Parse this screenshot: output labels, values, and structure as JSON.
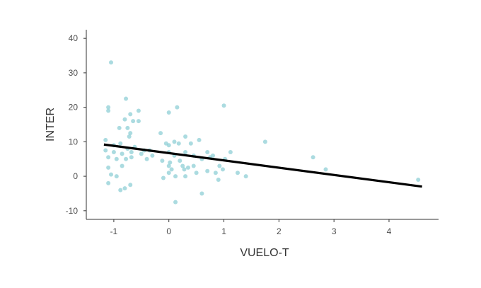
{
  "chart_data": {
    "type": "scatter",
    "title": "",
    "xlabel": "VUELO-T",
    "ylabel": "INTER",
    "xlim": [
      -1.5,
      4.9
    ],
    "ylim": [
      -12.5,
      42.5
    ],
    "xticks": [
      -1,
      0,
      1,
      2,
      3,
      4
    ],
    "yticks": [
      -10,
      0,
      10,
      20,
      30,
      40
    ],
    "grid": false,
    "legend": "none",
    "point_color": "#8fcfd6",
    "line_color": "#000000",
    "points": [
      {
        "x": -1.05,
        "y": 33
      },
      {
        "x": -1.1,
        "y": 20
      },
      {
        "x": -1.1,
        "y": 19
      },
      {
        "x": -1.15,
        "y": 10.5
      },
      {
        "x": -1.15,
        "y": 7.5
      },
      {
        "x": -1.1,
        "y": 5.5
      },
      {
        "x": -1.1,
        "y": 2.5
      },
      {
        "x": -1.05,
        "y": 0.5
      },
      {
        "x": -1.0,
        "y": 9
      },
      {
        "x": -1.0,
        "y": 7
      },
      {
        "x": -0.95,
        "y": 5
      },
      {
        "x": -1.1,
        "y": -2
      },
      {
        "x": -0.95,
        "y": 0
      },
      {
        "x": -0.9,
        "y": 14
      },
      {
        "x": -0.88,
        "y": 9.5
      },
      {
        "x": -0.85,
        "y": 6.5
      },
      {
        "x": -0.85,
        "y": 3
      },
      {
        "x": -0.88,
        "y": -4
      },
      {
        "x": -0.8,
        "y": -3.5
      },
      {
        "x": -0.78,
        "y": 22.5
      },
      {
        "x": -0.8,
        "y": 16.5
      },
      {
        "x": -0.75,
        "y": 14
      },
      {
        "x": -0.72,
        "y": 11.5
      },
      {
        "x": -0.75,
        "y": 8
      },
      {
        "x": -0.78,
        "y": 5
      },
      {
        "x": -0.7,
        "y": 18
      },
      {
        "x": -0.7,
        "y": 12.5
      },
      {
        "x": -0.68,
        "y": 7
      },
      {
        "x": -0.68,
        "y": 5.5
      },
      {
        "x": -0.7,
        "y": -2.5
      },
      {
        "x": -0.65,
        "y": 16
      },
      {
        "x": -0.62,
        "y": 8.5
      },
      {
        "x": -0.55,
        "y": 19
      },
      {
        "x": -0.55,
        "y": 16
      },
      {
        "x": -0.5,
        "y": 6.5
      },
      {
        "x": -0.45,
        "y": 7.5
      },
      {
        "x": -0.4,
        "y": 5
      },
      {
        "x": -0.35,
        "y": 7.5
      },
      {
        "x": -0.3,
        "y": 6
      },
      {
        "x": -0.15,
        "y": 12.5
      },
      {
        "x": -0.12,
        "y": 4.5
      },
      {
        "x": -0.1,
        "y": -0.5
      },
      {
        "x": -0.05,
        "y": 9.5
      },
      {
        "x": 0.0,
        "y": 18.5
      },
      {
        "x": 0.0,
        "y": 9
      },
      {
        "x": 0.0,
        "y": 7
      },
      {
        "x": 0.02,
        "y": 4
      },
      {
        "x": 0.0,
        "y": 3
      },
      {
        "x": 0.05,
        "y": 2
      },
      {
        "x": 0.0,
        "y": 1
      },
      {
        "x": 0.1,
        "y": 10
      },
      {
        "x": 0.1,
        "y": 6
      },
      {
        "x": 0.12,
        "y": 0
      },
      {
        "x": 0.12,
        "y": -7.5
      },
      {
        "x": 0.15,
        "y": 20
      },
      {
        "x": 0.18,
        "y": 9.5
      },
      {
        "x": 0.2,
        "y": 4.5
      },
      {
        "x": 0.25,
        "y": 3
      },
      {
        "x": 0.28,
        "y": 2
      },
      {
        "x": 0.3,
        "y": 11.5
      },
      {
        "x": 0.3,
        "y": 7
      },
      {
        "x": 0.3,
        "y": 0
      },
      {
        "x": 0.35,
        "y": 2.5
      },
      {
        "x": 0.4,
        "y": 9.5
      },
      {
        "x": 0.45,
        "y": 6
      },
      {
        "x": 0.45,
        "y": 3
      },
      {
        "x": 0.5,
        "y": 1
      },
      {
        "x": 0.55,
        "y": 10.5
      },
      {
        "x": 0.6,
        "y": 5
      },
      {
        "x": 0.6,
        "y": -5
      },
      {
        "x": 0.7,
        "y": 7
      },
      {
        "x": 0.7,
        "y": 1.5
      },
      {
        "x": 0.75,
        "y": 5.5
      },
      {
        "x": 0.8,
        "y": 6
      },
      {
        "x": 0.85,
        "y": 1
      },
      {
        "x": 0.9,
        "y": -1
      },
      {
        "x": 0.92,
        "y": 3
      },
      {
        "x": 0.98,
        "y": 2
      },
      {
        "x": 1.0,
        "y": 20.5
      },
      {
        "x": 1.02,
        "y": 5
      },
      {
        "x": 1.12,
        "y": 7
      },
      {
        "x": 1.25,
        "y": 1
      },
      {
        "x": 1.4,
        "y": 0
      },
      {
        "x": 1.75,
        "y": 10
      },
      {
        "x": 2.62,
        "y": 5.5
      },
      {
        "x": 2.85,
        "y": 2
      },
      {
        "x": 4.53,
        "y": -1
      }
    ],
    "trend_line": {
      "x": [
        -1.18,
        4.6
      ],
      "y": [
        9.2,
        -3.0
      ]
    }
  }
}
